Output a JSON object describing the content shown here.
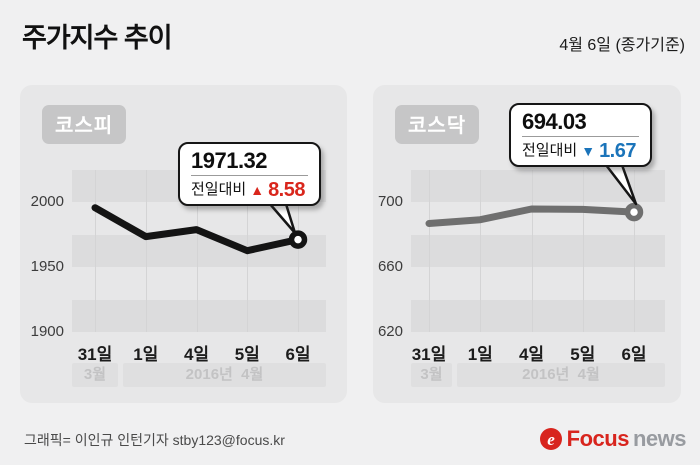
{
  "header": {
    "title": "주가지수 추이",
    "date_note": "4월 6일 (종가기준)"
  },
  "colors": {
    "up_red": "#d9261c",
    "down_blue": "#1b74ba",
    "kospi_line": "#141414",
    "kosdaq_line": "#6f6f6f",
    "brand_red": "#d8251e"
  },
  "chart_data": [
    {
      "id": "kospi",
      "type": "line",
      "title": "코스피",
      "categories": [
        "31일",
        "1일",
        "4일",
        "5일",
        "6일"
      ],
      "values": [
        1995.9,
        1973.6,
        1979.0,
        1962.7,
        1971.32
      ],
      "ylim": [
        1900,
        2025
      ],
      "yticks": [
        2000,
        1950,
        1900
      ],
      "month_bands": [
        "3월",
        "2016년  4월"
      ],
      "line_color": "#141414",
      "grid": true,
      "legend": "none",
      "callout": {
        "value": "1971.32",
        "label": "전일대비",
        "direction": "up",
        "arrow": "▲",
        "delta": "8.58",
        "color": "#d9261c"
      }
    },
    {
      "id": "kosdaq",
      "type": "line",
      "title": "코스닥",
      "categories": [
        "31일",
        "1일",
        "4일",
        "5일",
        "6일"
      ],
      "values": [
        687.0,
        689.3,
        695.9,
        695.7,
        694.03
      ],
      "ylim": [
        620,
        720
      ],
      "yticks": [
        700,
        660,
        620
      ],
      "month_bands": [
        "3월",
        "2016년  4월"
      ],
      "line_color": "#6f6f6f",
      "grid": true,
      "legend": "none",
      "callout": {
        "value": "694.03",
        "label": "전일대비",
        "direction": "down",
        "arrow": "▼",
        "delta": "1.67",
        "color": "#1b74ba"
      }
    }
  ],
  "footer": {
    "credit": "그래픽= 이인규 인턴기자 stby123@focus.kr",
    "logo": {
      "brand": "Focus",
      "suffix": "news"
    }
  }
}
